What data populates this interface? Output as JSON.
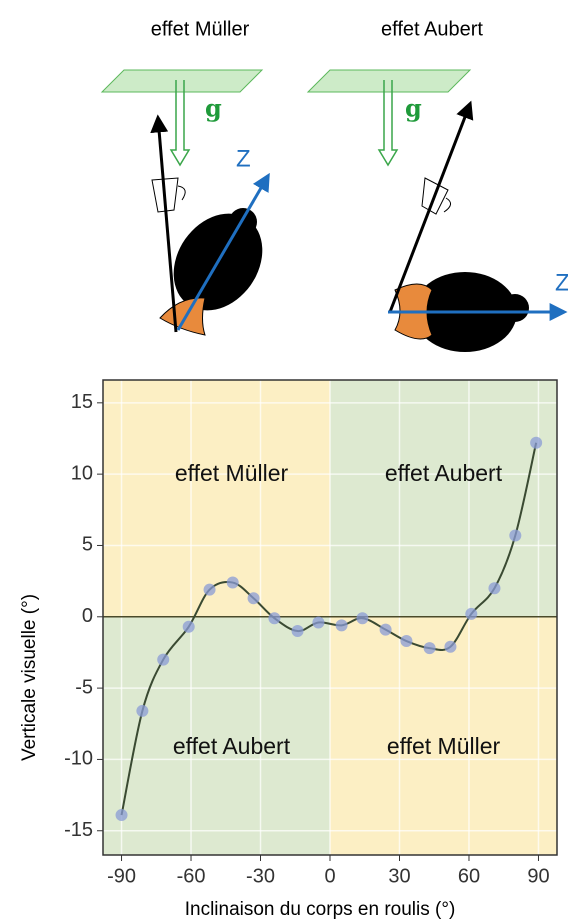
{
  "diagrams": [
    {
      "title": "effet Müller",
      "gravity_label": "g",
      "axis_label": "Z"
    },
    {
      "title": "effet Aubert",
      "gravity_label": "g",
      "axis_label": "Z"
    }
  ],
  "chart_data": {
    "type": "line",
    "x_label": "Inclinaison du corps en roulis  (°)",
    "y_label": "Verticale visuelle (°)",
    "x": [
      -90,
      -81,
      -72,
      -61,
      -52,
      -42,
      -33,
      -24,
      -14,
      -5,
      5,
      14,
      24,
      33,
      43,
      52,
      61,
      71,
      80,
      89
    ],
    "series": [
      {
        "color": "#8a9bd6",
        "line_color": "#3a4a32",
        "values": [
          -13.9,
          -6.6,
          -3.0,
          -0.7,
          1.9,
          2.4,
          1.3,
          -0.1,
          -1.0,
          -0.4,
          -0.6,
          -0.1,
          -0.9,
          -1.7,
          -2.2,
          -2.1,
          0.2,
          2.0,
          5.7,
          12.2
        ]
      }
    ],
    "xlim": [
      -98,
      98
    ],
    "ylim": [
      -16.7,
      16.6
    ],
    "xticks": [
      -90,
      -60,
      -30,
      0,
      30,
      60,
      90
    ],
    "yticks": [
      -15,
      -10,
      -5,
      0,
      5,
      10,
      15
    ],
    "grid": true,
    "reference_line": 0,
    "quadrant_labels": {
      "top_left": "effet Müller",
      "top_right": "effet Aubert",
      "bottom_left": "effet Aubert",
      "bottom_right": "effet Müller"
    }
  }
}
